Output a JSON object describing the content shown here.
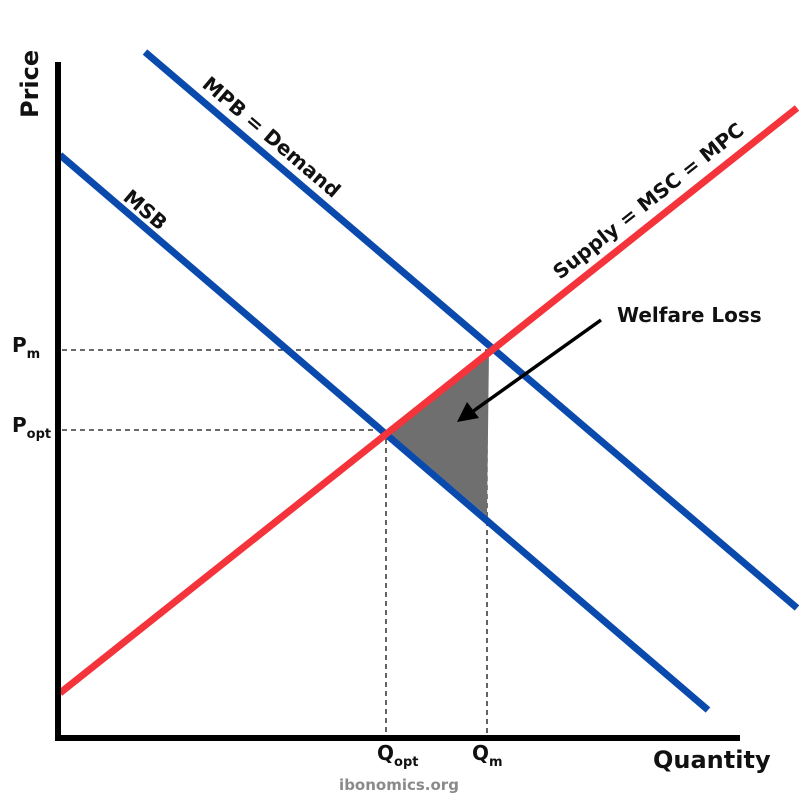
{
  "diagram": {
    "axes": {
      "x_label": "Quantity",
      "y_label": "Price"
    },
    "curves": [
      {
        "id": "mpb",
        "label": "MPB = Demand",
        "color": "#0b4aad"
      },
      {
        "id": "msb",
        "label": "MSB",
        "color": "#0b4aad"
      },
      {
        "id": "supply",
        "label": "Supply = MSC = MPC",
        "color": "#f4333b"
      }
    ],
    "price_levels": [
      {
        "id": "pm",
        "main": "P",
        "sub": "m"
      },
      {
        "id": "popt",
        "main": "P",
        "sub": "opt"
      }
    ],
    "quantity_levels": [
      {
        "id": "qopt",
        "main": "Q",
        "sub": "opt"
      },
      {
        "id": "qm",
        "main": "Q",
        "sub": "m"
      }
    ],
    "welfare_loss": {
      "label": "Welfare Loss",
      "fill": "#6f6f6f"
    },
    "credit": "ibonomics.org"
  }
}
